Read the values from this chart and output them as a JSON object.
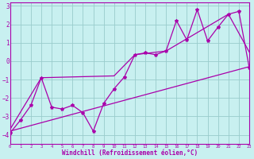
{
  "xlabel": "Windchill (Refroidissement éolien,°C)",
  "bg_color": "#c8f0f0",
  "line_color": "#aa00aa",
  "grid_color": "#99cccc",
  "spine_color": "#aa00aa",
  "xlim": [
    0,
    23
  ],
  "ylim": [
    -4.5,
    3.2
  ],
  "yticks": [
    -4,
    -3,
    -2,
    -1,
    0,
    1,
    2,
    3
  ],
  "xticks": [
    0,
    1,
    2,
    3,
    4,
    5,
    6,
    7,
    8,
    9,
    10,
    11,
    12,
    13,
    14,
    15,
    16,
    17,
    18,
    19,
    20,
    21,
    22,
    23
  ],
  "data_x": [
    0,
    1,
    2,
    3,
    4,
    5,
    6,
    7,
    8,
    9,
    10,
    11,
    12,
    13,
    14,
    15,
    16,
    17,
    18,
    19,
    20,
    21,
    22,
    23
  ],
  "data_y": [
    -3.9,
    -3.2,
    -2.4,
    -0.9,
    -2.5,
    -2.6,
    -2.4,
    -2.8,
    -3.8,
    -2.3,
    -1.5,
    -0.85,
    0.35,
    0.45,
    0.35,
    0.55,
    2.2,
    1.15,
    2.8,
    1.1,
    1.85,
    2.55,
    2.7,
    -0.35
  ],
  "trend_x": [
    0,
    23
  ],
  "trend_y": [
    -3.8,
    -0.3
  ],
  "env_x": [
    0,
    3,
    10,
    12,
    15,
    21,
    23
  ],
  "env_y": [
    -3.7,
    -0.9,
    -0.8,
    0.35,
    0.55,
    2.55,
    0.5
  ]
}
